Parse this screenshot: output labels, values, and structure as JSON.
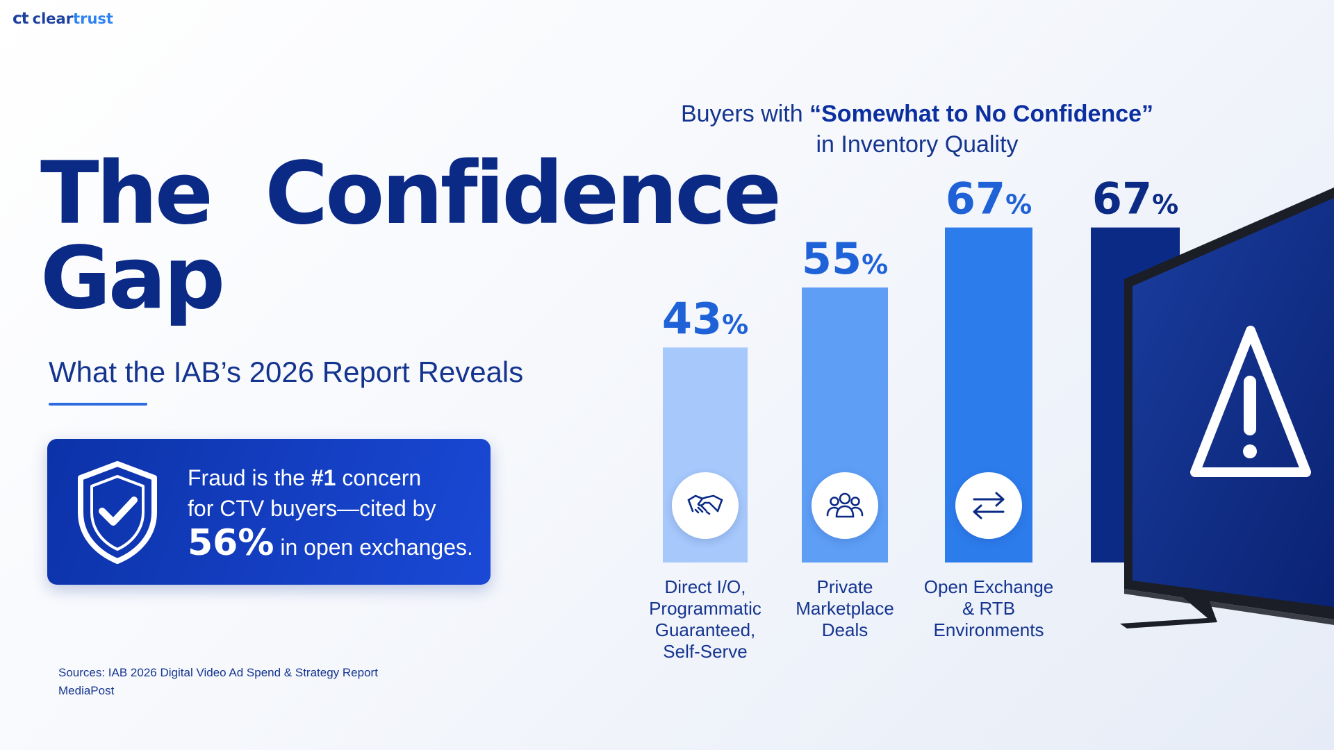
{
  "brand": {
    "mark": "ct",
    "name_a": "clear",
    "name_b": "trust"
  },
  "header": {
    "title_line1": "The  Confidence",
    "title_line2": "Gap",
    "subtitle": "What the IAB’s 2026 Report Reveals"
  },
  "callout": {
    "line1_pre": "Fraud is the ",
    "line1_bold": "#1",
    "line1_post": " concern",
    "line2": "for CTV buyers—cited by",
    "big_value": "56%",
    "line3_post": " in open exchanges.",
    "icon": "shield-check-icon"
  },
  "sources": {
    "line1": "Sources: IAB 2026 Digital Video Ad Spend & Strategy Report",
    "line2": "MediaPost"
  },
  "chart_data": {
    "type": "bar",
    "title_pre": "Buyers with ",
    "title_bold": "“Somewhat to No Confidence”",
    "title_line2": "in Inventory Quality",
    "categories": [
      [
        "Direct I/O,",
        "Programmatic",
        "Guaranteed,",
        "Self-Serve"
      ],
      [
        "Private",
        "Marketplace",
        "Deals"
      ],
      [
        "Open Exchange",
        "& RTB",
        "Environments"
      ],
      [
        ""
      ]
    ],
    "values": [
      43,
      55,
      67,
      67
    ],
    "value_labels": [
      [
        "43",
        "%"
      ],
      [
        "55",
        "%"
      ],
      [
        "67",
        "%"
      ],
      [
        "67",
        "%"
      ]
    ],
    "bar_colors": [
      "#a6c8fa",
      "#5e9ef5",
      "#2d7cec",
      "#0b2a86"
    ],
    "label_colors": [
      "#1f62d8",
      "#1f62d8",
      "#1f62d8",
      "#0b2a86"
    ],
    "icons": [
      "handshake-icon",
      "people-group-icon",
      "arrows-exchange-icon",
      "warning-triangle-icon"
    ],
    "ylim": [
      0,
      100
    ],
    "xlabel": "",
    "ylabel": ""
  },
  "colors": {
    "navy": "#0b2a86",
    "accent_blue": "#2d7cec",
    "callout_bg": "#1a49d6"
  }
}
